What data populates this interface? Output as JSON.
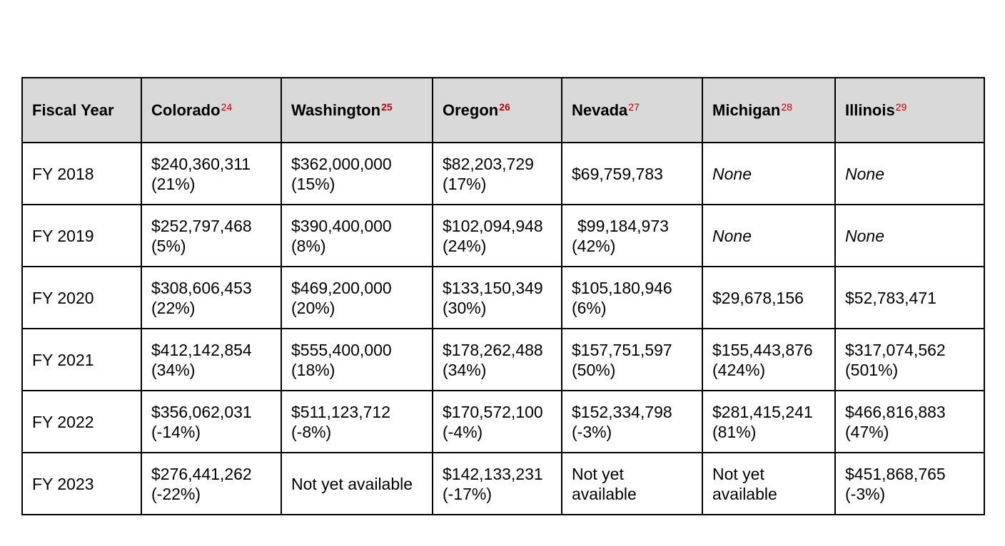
{
  "table": {
    "headers": [
      {
        "label": "Fiscal Year",
        "footnote": ""
      },
      {
        "label": "Colorado",
        "footnote": "24"
      },
      {
        "label": "Washington",
        "footnote": "25"
      },
      {
        "label": "Oregon",
        "footnote": "26"
      },
      {
        "label": "Nevada",
        "footnote": "27"
      },
      {
        "label": "Michigan",
        "footnote": "28"
      },
      {
        "label": "Illinois",
        "footnote": "29"
      }
    ],
    "colors": {
      "header_bg": "#d9d9d9",
      "footnote": "#c00000",
      "border": "#000000"
    },
    "rows": [
      {
        "year": "FY 2018",
        "cells": [
          {
            "amount": "$240,360,311",
            "change": "(21%)"
          },
          {
            "amount": "$362,000,000",
            "change": "(15%)"
          },
          {
            "amount": "$82,203,729",
            "change": "(17%)"
          },
          {
            "amount": "$69,759,783",
            "change": ""
          },
          {
            "amount": "None",
            "change": ""
          },
          {
            "amount": "None",
            "change": ""
          }
        ]
      },
      {
        "year": "FY 2019",
        "cells": [
          {
            "amount": "$252,797,468",
            "change": "(5%)"
          },
          {
            "amount": "$390,400,000",
            "change": "(8%)"
          },
          {
            "amount": "$102,094,948",
            "change": "(24%)"
          },
          {
            "amount": "$99,184,973",
            "change": "(42%)"
          },
          {
            "amount": "None",
            "change": ""
          },
          {
            "amount": "None",
            "change": ""
          }
        ]
      },
      {
        "year": "FY 2020",
        "cells": [
          {
            "amount": "$308,606,453",
            "change": "(22%)"
          },
          {
            "amount": "$469,200,000",
            "change": "(20%)"
          },
          {
            "amount": "$133,150,349",
            "change": "(30%)"
          },
          {
            "amount": "$105,180,946",
            "change": "(6%)"
          },
          {
            "amount": "$29,678,156",
            "change": ""
          },
          {
            "amount": "$52,783,471",
            "change": ""
          }
        ]
      },
      {
        "year": "FY 2021",
        "cells": [
          {
            "amount": "$412,142,854",
            "change": "(34%)"
          },
          {
            "amount": "$555,400,000",
            "change": "(18%)"
          },
          {
            "amount": "$178,262,488",
            "change": "(34%)"
          },
          {
            "amount": "$157,751,597",
            "change": "(50%)"
          },
          {
            "amount": "$155,443,876",
            "change": "(424%)"
          },
          {
            "amount": "$317,074,562",
            "change": "(501%)"
          }
        ]
      },
      {
        "year": "FY 2022",
        "cells": [
          {
            "amount": "$356,062,031",
            "change": "(-14%)"
          },
          {
            "amount": "$511,123,712",
            "change": "(-8%)"
          },
          {
            "amount": "$170,572,100",
            "change": "(-4%)"
          },
          {
            "amount": "$152,334,798",
            "change": "(-3%)"
          },
          {
            "amount": "$281,415,241",
            "change": "(81%)"
          },
          {
            "amount": "$466,816,883",
            "change": "(47%)"
          }
        ]
      },
      {
        "year": "FY 2023",
        "cells": [
          {
            "amount": "$276,441,262",
            "change": "(-22%)"
          },
          {
            "amount": "Not yet available",
            "change": ""
          },
          {
            "amount": "$142,133,231",
            "change": "(-17%)"
          },
          {
            "amount": "Not yet",
            "change": "available"
          },
          {
            "amount": "Not yet",
            "change": "available"
          },
          {
            "amount": "$451,868,765",
            "change": "(-3%)"
          }
        ]
      }
    ]
  }
}
